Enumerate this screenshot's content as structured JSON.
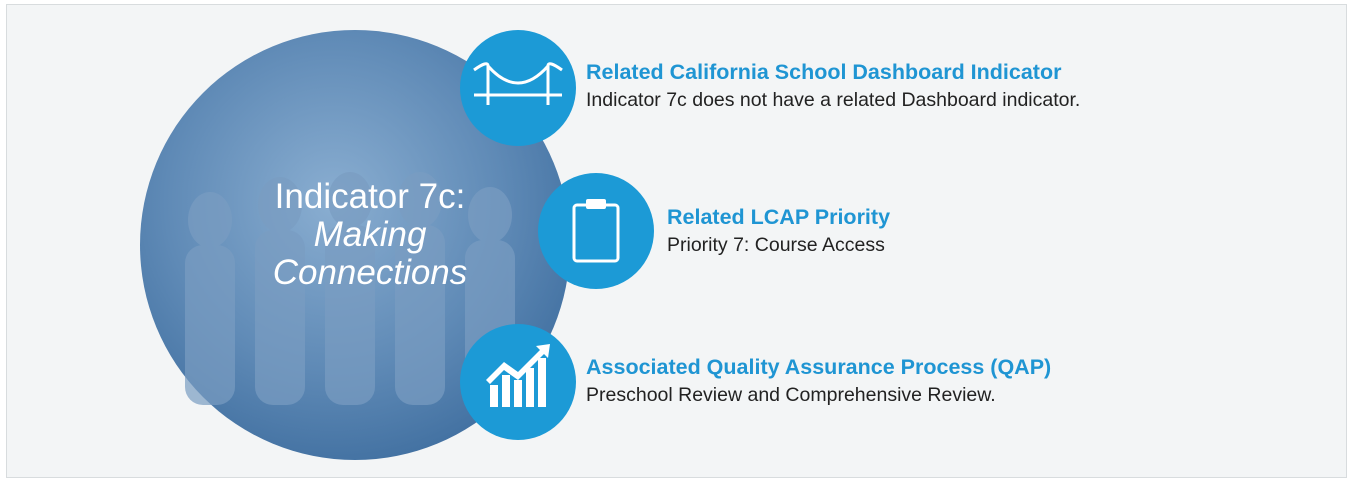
{
  "circle": {
    "title": "Indicator 7c:",
    "subtitle_lines": [
      "Making",
      "Connections"
    ]
  },
  "items": [
    {
      "heading": "Related California School Dashboard Indicator",
      "text": "Indicator 7c does not have a related Dashboard indicator."
    },
    {
      "heading": "Related LCAP Priority",
      "text": "Priority 7: Course Access"
    },
    {
      "heading": "Associated Quality Assurance Process (QAP)",
      "text": "Preschool Review and Comprehensive Review."
    }
  ]
}
